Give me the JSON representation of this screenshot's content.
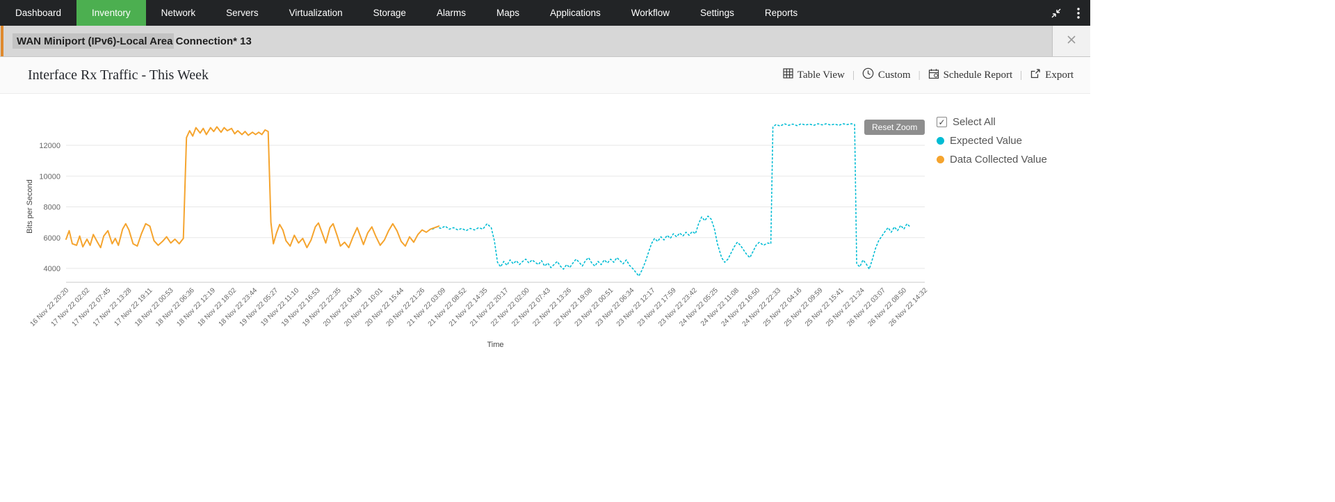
{
  "nav": {
    "active_item": "Inventory",
    "active_color": "#4caf50",
    "items": [
      {
        "label": "Dashboard"
      },
      {
        "label": "Inventory"
      },
      {
        "label": "Network"
      },
      {
        "label": "Servers"
      },
      {
        "label": "Virtualization"
      },
      {
        "label": "Storage"
      },
      {
        "label": "Alarms"
      },
      {
        "label": "Maps"
      },
      {
        "label": "Applications"
      },
      {
        "label": "Workflow"
      },
      {
        "label": "Settings"
      },
      {
        "label": "Reports"
      }
    ]
  },
  "device_bar": {
    "title": "WAN Miniport (IPv6)-Local Area Connection* 13"
  },
  "header": {
    "title": "Interface Rx Traffic - This Week"
  },
  "toolbar": {
    "actions": [
      {
        "label": "Table View",
        "icon": "table-icon"
      },
      {
        "label": "Custom",
        "icon": "clock-icon"
      },
      {
        "label": "Schedule Report",
        "icon": "calendar-icon"
      },
      {
        "label": "Export",
        "icon": "export-icon"
      }
    ]
  },
  "chart": {
    "reset_zoom_label": "Reset Zoom",
    "legend": {
      "select_all": "Select All"
    }
  },
  "chart_data": {
    "type": "line",
    "title": "Interface Rx Traffic - This Week",
    "xlabel": "Time",
    "ylabel": "Bits per Second",
    "ylim": [
      3100,
      13900
    ],
    "yticks": [
      4000,
      6000,
      8000,
      10000,
      12000
    ],
    "grid": true,
    "legend_position": "right",
    "x_tick_labels": [
      "16 Nov 22 20:20",
      "17 Nov 22 02:02",
      "17 Nov 22 07:45",
      "17 Nov 22 13:28",
      "17 Nov 22 19:11",
      "18 Nov 22 00:53",
      "18 Nov 22 06:36",
      "18 Nov 22 12:19",
      "18 Nov 22 18:02",
      "18 Nov 22 23:44",
      "19 Nov 22 05:27",
      "19 Nov 22 11:10",
      "19 Nov 22 16:53",
      "19 Nov 22 22:35",
      "20 Nov 22 04:18",
      "20 Nov 22 10:01",
      "20 Nov 22 15:44",
      "20 Nov 22 21:26",
      "21 Nov 22 03:09",
      "21 Nov 22 08:52",
      "21 Nov 22 14:35",
      "21 Nov 22 20:17",
      "22 Nov 22 02:00",
      "22 Nov 22 07:43",
      "22 Nov 22 13:26",
      "22 Nov 22 19:08",
      "23 Nov 22 00:51",
      "23 Nov 22 06:34",
      "23 Nov 22 12:17",
      "23 Nov 22 17:59",
      "23 Nov 22 23:42",
      "24 Nov 22 05:25",
      "24 Nov 22 11:08",
      "24 Nov 22 16:50",
      "24 Nov 22 22:33",
      "25 Nov 22 04:16",
      "25 Nov 22 09:59",
      "25 Nov 22 15:41",
      "25 Nov 22 21:24",
      "26 Nov 22 03:07",
      "26 Nov 22 08:50",
      "26 Nov 22 14:32"
    ],
    "series": [
      {
        "name": "Expected Value",
        "color": "#00bcd4",
        "style": "dotted",
        "points": [
          [
            17.5,
            6550
          ],
          [
            17.7,
            6700
          ],
          [
            17.9,
            6600
          ],
          [
            18.1,
            6750
          ],
          [
            18.3,
            6550
          ],
          [
            18.5,
            6650
          ],
          [
            18.7,
            6500
          ],
          [
            18.9,
            6600
          ],
          [
            19.1,
            6450
          ],
          [
            19.3,
            6600
          ],
          [
            19.5,
            6500
          ],
          [
            19.7,
            6650
          ],
          [
            19.9,
            6550
          ],
          [
            20.1,
            6900
          ],
          [
            20.3,
            6650
          ],
          [
            20.45,
            5800
          ],
          [
            20.6,
            4400
          ],
          [
            20.75,
            4100
          ],
          [
            20.9,
            4450
          ],
          [
            21.05,
            4200
          ],
          [
            21.2,
            4550
          ],
          [
            21.35,
            4300
          ],
          [
            21.5,
            4500
          ],
          [
            21.65,
            4250
          ],
          [
            21.8,
            4450
          ],
          [
            21.95,
            4600
          ],
          [
            22.1,
            4350
          ],
          [
            22.25,
            4550
          ],
          [
            22.4,
            4400
          ],
          [
            22.55,
            4250
          ],
          [
            22.7,
            4500
          ],
          [
            22.85,
            4150
          ],
          [
            23,
            4350
          ],
          [
            23.15,
            4050
          ],
          [
            23.3,
            4250
          ],
          [
            23.45,
            4450
          ],
          [
            23.6,
            4150
          ],
          [
            23.75,
            3950
          ],
          [
            23.9,
            4250
          ],
          [
            24.05,
            4050
          ],
          [
            24.2,
            4350
          ],
          [
            24.35,
            4600
          ],
          [
            24.5,
            4400
          ],
          [
            24.65,
            4150
          ],
          [
            24.8,
            4500
          ],
          [
            24.95,
            4700
          ],
          [
            25.1,
            4350
          ],
          [
            25.25,
            4150
          ],
          [
            25.4,
            4450
          ],
          [
            25.55,
            4250
          ],
          [
            25.7,
            4550
          ],
          [
            25.85,
            4350
          ],
          [
            26,
            4600
          ],
          [
            26.15,
            4400
          ],
          [
            26.3,
            4700
          ],
          [
            26.45,
            4500
          ],
          [
            26.6,
            4300
          ],
          [
            26.75,
            4550
          ],
          [
            26.9,
            4200
          ],
          [
            27.05,
            4000
          ],
          [
            27.2,
            3750
          ],
          [
            27.35,
            3500
          ],
          [
            27.5,
            3900
          ],
          [
            27.65,
            4400
          ],
          [
            27.8,
            5000
          ],
          [
            27.95,
            5600
          ],
          [
            28.1,
            5950
          ],
          [
            28.25,
            5750
          ],
          [
            28.4,
            6050
          ],
          [
            28.55,
            5850
          ],
          [
            28.7,
            6150
          ],
          [
            28.85,
            5950
          ],
          [
            29,
            6250
          ],
          [
            29.15,
            6050
          ],
          [
            29.3,
            6300
          ],
          [
            29.45,
            6100
          ],
          [
            29.6,
            6350
          ],
          [
            29.75,
            6150
          ],
          [
            29.9,
            6400
          ],
          [
            30.05,
            6250
          ],
          [
            30.2,
            6900
          ],
          [
            30.35,
            7350
          ],
          [
            30.5,
            7100
          ],
          [
            30.65,
            7400
          ],
          [
            30.8,
            7200
          ],
          [
            30.95,
            6600
          ],
          [
            31.1,
            5600
          ],
          [
            31.3,
            4700
          ],
          [
            31.45,
            4400
          ],
          [
            31.6,
            4600
          ],
          [
            31.75,
            5000
          ],
          [
            31.9,
            5400
          ],
          [
            32.05,
            5700
          ],
          [
            32.2,
            5500
          ],
          [
            32.35,
            5200
          ],
          [
            32.5,
            4900
          ],
          [
            32.65,
            4700
          ],
          [
            32.8,
            5100
          ],
          [
            32.95,
            5500
          ],
          [
            33.1,
            5700
          ],
          [
            33.3,
            5500
          ],
          [
            33.5,
            5650
          ],
          [
            33.65,
            5600
          ],
          [
            33.75,
            13200
          ],
          [
            33.9,
            13350
          ],
          [
            34.1,
            13250
          ],
          [
            34.3,
            13400
          ],
          [
            34.5,
            13300
          ],
          [
            34.7,
            13380
          ],
          [
            34.9,
            13280
          ],
          [
            35.1,
            13400
          ],
          [
            35.3,
            13320
          ],
          [
            35.5,
            13380
          ],
          [
            35.7,
            13300
          ],
          [
            35.9,
            13400
          ],
          [
            36.1,
            13330
          ],
          [
            36.3,
            13400
          ],
          [
            36.5,
            13320
          ],
          [
            36.7,
            13380
          ],
          [
            36.9,
            13300
          ],
          [
            37.1,
            13400
          ],
          [
            37.3,
            13350
          ],
          [
            37.5,
            13400
          ],
          [
            37.65,
            13350
          ],
          [
            37.75,
            4300
          ],
          [
            37.9,
            4100
          ],
          [
            38.05,
            4550
          ],
          [
            38.2,
            4300
          ],
          [
            38.35,
            3950
          ],
          [
            38.5,
            4600
          ],
          [
            38.65,
            5300
          ],
          [
            38.8,
            5800
          ],
          [
            38.95,
            6100
          ],
          [
            39.1,
            6400
          ],
          [
            39.25,
            6650
          ],
          [
            39.4,
            6350
          ],
          [
            39.55,
            6700
          ],
          [
            39.7,
            6450
          ],
          [
            39.85,
            6800
          ],
          [
            40,
            6550
          ],
          [
            40.15,
            6900
          ],
          [
            40.3,
            6700
          ]
        ]
      },
      {
        "name": "Data Collected Value",
        "color": "#f5a42e",
        "style": "solid",
        "points": [
          [
            0,
            5900
          ],
          [
            0.15,
            6450
          ],
          [
            0.3,
            5600
          ],
          [
            0.5,
            5500
          ],
          [
            0.65,
            6100
          ],
          [
            0.8,
            5400
          ],
          [
            1,
            5900
          ],
          [
            1.15,
            5500
          ],
          [
            1.3,
            6200
          ],
          [
            1.5,
            5700
          ],
          [
            1.65,
            5350
          ],
          [
            1.8,
            6100
          ],
          [
            2,
            6450
          ],
          [
            2.2,
            5600
          ],
          [
            2.35,
            5950
          ],
          [
            2.5,
            5500
          ],
          [
            2.7,
            6550
          ],
          [
            2.85,
            6900
          ],
          [
            3,
            6500
          ],
          [
            3.2,
            5600
          ],
          [
            3.4,
            5450
          ],
          [
            3.6,
            6250
          ],
          [
            3.8,
            6900
          ],
          [
            4,
            6750
          ],
          [
            4.2,
            5800
          ],
          [
            4.4,
            5500
          ],
          [
            4.6,
            5750
          ],
          [
            4.8,
            6050
          ],
          [
            5,
            5650
          ],
          [
            5.2,
            5900
          ],
          [
            5.4,
            5600
          ],
          [
            5.6,
            5950
          ],
          [
            5.75,
            12500
          ],
          [
            5.9,
            12950
          ],
          [
            6.05,
            12600
          ],
          [
            6.2,
            13150
          ],
          [
            6.4,
            12800
          ],
          [
            6.55,
            13100
          ],
          [
            6.7,
            12700
          ],
          [
            6.9,
            13150
          ],
          [
            7.05,
            12900
          ],
          [
            7.2,
            13200
          ],
          [
            7.4,
            12850
          ],
          [
            7.55,
            13150
          ],
          [
            7.7,
            12950
          ],
          [
            7.9,
            13100
          ],
          [
            8.05,
            12750
          ],
          [
            8.2,
            12950
          ],
          [
            8.4,
            12700
          ],
          [
            8.55,
            12900
          ],
          [
            8.7,
            12650
          ],
          [
            8.9,
            12850
          ],
          [
            9.05,
            12700
          ],
          [
            9.2,
            12850
          ],
          [
            9.35,
            12700
          ],
          [
            9.5,
            13000
          ],
          [
            9.65,
            12900
          ],
          [
            9.78,
            7000
          ],
          [
            9.9,
            5600
          ],
          [
            10.05,
            6300
          ],
          [
            10.2,
            6850
          ],
          [
            10.35,
            6500
          ],
          [
            10.5,
            5800
          ],
          [
            10.7,
            5450
          ],
          [
            10.9,
            6150
          ],
          [
            11.1,
            5650
          ],
          [
            11.3,
            5950
          ],
          [
            11.5,
            5350
          ],
          [
            11.7,
            5850
          ],
          [
            11.9,
            6700
          ],
          [
            12.05,
            6950
          ],
          [
            12.2,
            6400
          ],
          [
            12.4,
            5650
          ],
          [
            12.6,
            6650
          ],
          [
            12.75,
            6900
          ],
          [
            12.95,
            6100
          ],
          [
            13.1,
            5450
          ],
          [
            13.3,
            5700
          ],
          [
            13.5,
            5350
          ],
          [
            13.7,
            6050
          ],
          [
            13.9,
            6650
          ],
          [
            14.05,
            6100
          ],
          [
            14.2,
            5550
          ],
          [
            14.4,
            6300
          ],
          [
            14.6,
            6700
          ],
          [
            14.8,
            6050
          ],
          [
            15,
            5500
          ],
          [
            15.2,
            5850
          ],
          [
            15.4,
            6450
          ],
          [
            15.6,
            6900
          ],
          [
            15.8,
            6450
          ],
          [
            16,
            5750
          ],
          [
            16.2,
            5450
          ],
          [
            16.4,
            6050
          ],
          [
            16.6,
            5700
          ],
          [
            16.8,
            6200
          ],
          [
            17,
            6500
          ],
          [
            17.2,
            6350
          ],
          [
            17.4,
            6550
          ],
          [
            17.6,
            6650
          ],
          [
            17.8,
            6750
          ]
        ]
      }
    ]
  }
}
